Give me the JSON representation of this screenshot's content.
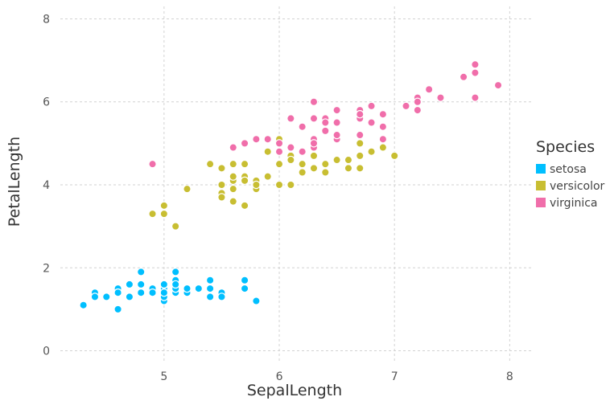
{
  "chart_data": {
    "type": "scatter",
    "xlabel": "SepalLength",
    "ylabel": "PetalLength",
    "xlim": [
      4.1,
      8.2
    ],
    "ylim": [
      -0.3,
      8.3
    ],
    "xticks": [
      "5",
      "6",
      "7",
      "8"
    ],
    "yticks": [
      "0",
      "2",
      "4",
      "6",
      "8"
    ],
    "grid": true,
    "legend": {
      "title": "Species",
      "placement": "right"
    },
    "series": [
      {
        "name": "setosa",
        "color": "#00BFFF",
        "points": [
          [
            5.1,
            1.4
          ],
          [
            4.9,
            1.4
          ],
          [
            4.7,
            1.3
          ],
          [
            4.6,
            1.5
          ],
          [
            5.0,
            1.4
          ],
          [
            5.4,
            1.7
          ],
          [
            4.6,
            1.4
          ],
          [
            5.0,
            1.5
          ],
          [
            4.4,
            1.4
          ],
          [
            4.9,
            1.5
          ],
          [
            5.4,
            1.5
          ],
          [
            4.8,
            1.6
          ],
          [
            4.8,
            1.4
          ],
          [
            4.3,
            1.1
          ],
          [
            5.8,
            1.2
          ],
          [
            5.7,
            1.5
          ],
          [
            5.4,
            1.3
          ],
          [
            5.1,
            1.4
          ],
          [
            5.7,
            1.7
          ],
          [
            5.1,
            1.5
          ],
          [
            5.4,
            1.7
          ],
          [
            5.1,
            1.5
          ],
          [
            4.6,
            1.0
          ],
          [
            5.1,
            1.7
          ],
          [
            4.8,
            1.9
          ],
          [
            5.0,
            1.6
          ],
          [
            5.0,
            1.6
          ],
          [
            5.2,
            1.5
          ],
          [
            5.2,
            1.4
          ],
          [
            4.7,
            1.6
          ],
          [
            4.8,
            1.6
          ],
          [
            5.4,
            1.5
          ],
          [
            5.2,
            1.5
          ],
          [
            5.5,
            1.4
          ],
          [
            4.9,
            1.5
          ],
          [
            5.0,
            1.2
          ],
          [
            5.5,
            1.3
          ],
          [
            4.9,
            1.4
          ],
          [
            4.4,
            1.3
          ],
          [
            5.1,
            1.5
          ],
          [
            5.0,
            1.3
          ],
          [
            4.5,
            1.3
          ],
          [
            4.4,
            1.3
          ],
          [
            5.0,
            1.6
          ],
          [
            5.1,
            1.9
          ],
          [
            4.8,
            1.4
          ],
          [
            5.1,
            1.6
          ],
          [
            4.6,
            1.4
          ],
          [
            5.3,
            1.5
          ],
          [
            5.0,
            1.4
          ]
        ]
      },
      {
        "name": "versicolor",
        "color": "#C8BE32",
        "points": [
          [
            7.0,
            4.7
          ],
          [
            6.4,
            4.5
          ],
          [
            6.9,
            4.9
          ],
          [
            5.5,
            4.0
          ],
          [
            6.5,
            4.6
          ],
          [
            5.7,
            4.5
          ],
          [
            6.3,
            4.7
          ],
          [
            4.9,
            3.3
          ],
          [
            6.6,
            4.6
          ],
          [
            5.2,
            3.9
          ],
          [
            5.0,
            3.5
          ],
          [
            5.9,
            4.2
          ],
          [
            6.0,
            4.0
          ],
          [
            6.1,
            4.7
          ],
          [
            5.6,
            3.6
          ],
          [
            6.7,
            4.4
          ],
          [
            5.6,
            4.5
          ],
          [
            5.8,
            4.1
          ],
          [
            6.2,
            4.5
          ],
          [
            5.6,
            3.9
          ],
          [
            5.9,
            4.8
          ],
          [
            6.1,
            4.0
          ],
          [
            6.3,
            4.9
          ],
          [
            6.1,
            4.7
          ],
          [
            6.4,
            4.3
          ],
          [
            6.6,
            4.4
          ],
          [
            6.8,
            4.8
          ],
          [
            6.7,
            5.0
          ],
          [
            6.0,
            4.5
          ],
          [
            5.7,
            3.5
          ],
          [
            5.5,
            3.8
          ],
          [
            5.5,
            3.7
          ],
          [
            5.8,
            3.9
          ],
          [
            6.0,
            5.1
          ],
          [
            5.4,
            4.5
          ],
          [
            6.0,
            4.5
          ],
          [
            6.7,
            4.7
          ],
          [
            6.3,
            4.4
          ],
          [
            5.6,
            4.1
          ],
          [
            5.5,
            4.0
          ],
          [
            5.5,
            4.4
          ],
          [
            6.1,
            4.6
          ],
          [
            5.8,
            4.0
          ],
          [
            5.0,
            3.3
          ],
          [
            5.6,
            4.2
          ],
          [
            5.7,
            4.2
          ],
          [
            5.7,
            4.2
          ],
          [
            6.2,
            4.3
          ],
          [
            5.1,
            3.0
          ],
          [
            5.7,
            4.1
          ]
        ]
      },
      {
        "name": "virginica",
        "color": "#F06EAA",
        "points": [
          [
            6.3,
            6.0
          ],
          [
            5.8,
            5.1
          ],
          [
            7.1,
            5.9
          ],
          [
            6.3,
            5.6
          ],
          [
            6.5,
            5.8
          ],
          [
            7.6,
            6.6
          ],
          [
            4.9,
            4.5
          ],
          [
            7.3,
            6.3
          ],
          [
            6.7,
            5.8
          ],
          [
            7.2,
            6.1
          ],
          [
            6.5,
            5.1
          ],
          [
            6.4,
            5.3
          ],
          [
            6.8,
            5.5
          ],
          [
            5.7,
            5.0
          ],
          [
            5.8,
            5.1
          ],
          [
            6.4,
            5.3
          ],
          [
            6.5,
            5.5
          ],
          [
            7.7,
            6.7
          ],
          [
            7.7,
            6.9
          ],
          [
            6.0,
            5.0
          ],
          [
            6.9,
            5.7
          ],
          [
            5.6,
            4.9
          ],
          [
            7.7,
            6.7
          ],
          [
            6.3,
            4.9
          ],
          [
            6.7,
            5.7
          ],
          [
            7.2,
            6.0
          ],
          [
            6.2,
            4.8
          ],
          [
            6.1,
            4.9
          ],
          [
            6.4,
            5.6
          ],
          [
            7.2,
            5.8
          ],
          [
            7.4,
            6.1
          ],
          [
            7.9,
            6.4
          ],
          [
            6.4,
            5.6
          ],
          [
            6.3,
            5.1
          ],
          [
            6.1,
            5.6
          ],
          [
            7.7,
            6.1
          ],
          [
            6.3,
            5.6
          ],
          [
            6.4,
            5.5
          ],
          [
            6.0,
            4.8
          ],
          [
            6.9,
            5.4
          ],
          [
            6.7,
            5.6
          ],
          [
            6.9,
            5.1
          ],
          [
            5.8,
            5.1
          ],
          [
            6.8,
            5.9
          ],
          [
            6.7,
            5.7
          ],
          [
            6.7,
            5.2
          ],
          [
            6.3,
            5.0
          ],
          [
            6.5,
            5.2
          ],
          [
            6.2,
            5.4
          ],
          [
            5.9,
            5.1
          ]
        ]
      }
    ]
  }
}
